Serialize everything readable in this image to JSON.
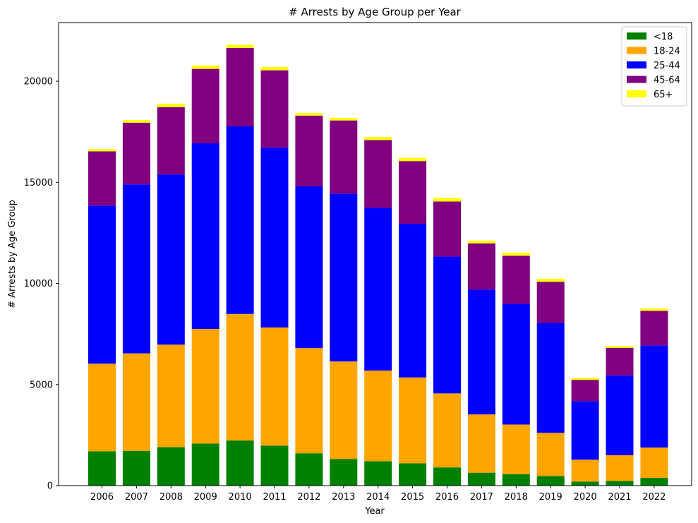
{
  "chart_data": {
    "type": "bar",
    "stacked": true,
    "title": "# Arrests by Age Group per Year",
    "xlabel": "Year",
    "ylabel": "# Arrests by Age Group",
    "ylim": [
      0,
      22900
    ],
    "yticks": [
      0,
      5000,
      10000,
      15000,
      20000
    ],
    "grid": false,
    "legend_position": "top-right",
    "categories": [
      "2006",
      "2007",
      "2008",
      "2009",
      "2010",
      "2011",
      "2012",
      "2013",
      "2014",
      "2015",
      "2016",
      "2017",
      "2018",
      "2019",
      "2020",
      "2021",
      "2022"
    ],
    "series": [
      {
        "name": "<18",
        "color": "#008000",
        "values": [
          1700,
          1720,
          1900,
          2080,
          2230,
          1980,
          1600,
          1320,
          1210,
          1100,
          900,
          640,
          560,
          470,
          200,
          230,
          380
        ]
      },
      {
        "name": "18-24",
        "color": "#ffa500",
        "values": [
          4330,
          4820,
          5070,
          5670,
          6260,
          5840,
          5200,
          4820,
          4480,
          4250,
          3660,
          2880,
          2460,
          2140,
          1080,
          1270,
          1500
        ]
      },
      {
        "name": "25-44",
        "color": "#0000ff",
        "values": [
          7820,
          8360,
          8420,
          9180,
          9280,
          8890,
          8000,
          8300,
          8050,
          7600,
          6770,
          6180,
          5970,
          5440,
          2900,
          3950,
          5060
        ]
      },
      {
        "name": "45-64",
        "color": "#800080",
        "values": [
          2680,
          3050,
          3330,
          3680,
          3880,
          3830,
          3500,
          3620,
          3350,
          3100,
          2720,
          2280,
          2380,
          2030,
          1050,
          1360,
          1700
        ]
      },
      {
        "name": "65+",
        "color": "#ffff00",
        "values": [
          110,
          130,
          170,
          170,
          160,
          160,
          130,
          130,
          150,
          160,
          180,
          140,
          150,
          150,
          100,
          100,
          120
        ]
      }
    ]
  }
}
